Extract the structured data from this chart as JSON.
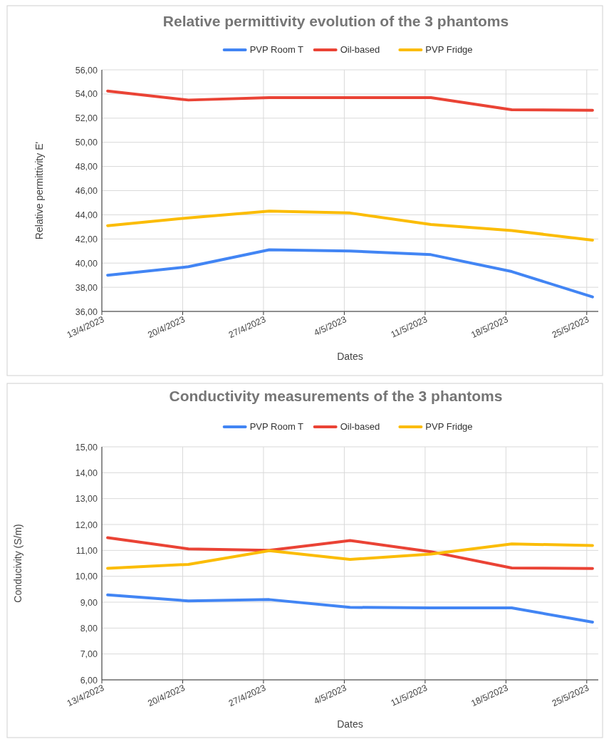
{
  "chart_data": [
    {
      "type": "line",
      "title": "Relative permittivity evolution of the 3 phantoms",
      "xlabel": "Dates",
      "ylabel": "Relative permittivity E'",
      "legend": "top",
      "grid": true,
      "marker": "none",
      "line_style": "solid",
      "x": [
        "2023-04-13T12:00",
        "2023-04-20T12:00",
        "2023-04-27T12:00",
        "2023-05-04T12:00",
        "2023-05-11T12:00",
        "2023-05-18T12:00",
        "2023-05-25T12:00"
      ],
      "xlim": [
        "2023-04-13",
        "2023-05-26"
      ],
      "xticks": [
        {
          "value": "2023-04-13",
          "label": "13/4/2023"
        },
        {
          "value": "2023-04-20",
          "label": "20/4/2023"
        },
        {
          "value": "2023-04-27",
          "label": "27/4/2023"
        },
        {
          "value": "2023-05-04",
          "label": "4/5/2023"
        },
        {
          "value": "2023-05-11",
          "label": "11/5/2023"
        },
        {
          "value": "2023-05-18",
          "label": "18/5/2023"
        },
        {
          "value": "2023-05-25",
          "label": "25/5/2023"
        }
      ],
      "ylim": [
        36,
        56
      ],
      "yticks": [
        {
          "value": 36,
          "label": "36,00"
        },
        {
          "value": 38,
          "label": "38,00"
        },
        {
          "value": 40,
          "label": "40,00"
        },
        {
          "value": 42,
          "label": "42,00"
        },
        {
          "value": 44,
          "label": "44,00"
        },
        {
          "value": 46,
          "label": "46,00"
        },
        {
          "value": 48,
          "label": "48,00"
        },
        {
          "value": 50,
          "label": "50,00"
        },
        {
          "value": 52,
          "label": "52,00"
        },
        {
          "value": 54,
          "label": "54,00"
        },
        {
          "value": 56,
          "label": "56,00"
        }
      ],
      "series": [
        {
          "name": "PVP Room T",
          "color": "#4285f4",
          "values": [
            39.0,
            39.7,
            41.1,
            41.0,
            40.7,
            39.3,
            37.2
          ]
        },
        {
          "name": "Oil-based",
          "color": "#ea4335",
          "values": [
            54.25,
            53.5,
            53.7,
            53.7,
            53.7,
            52.7,
            52.65
          ]
        },
        {
          "name": "PVP Fridge",
          "color": "#fbbc04",
          "values": [
            43.1,
            43.75,
            44.3,
            44.15,
            43.2,
            42.7,
            41.9
          ]
        }
      ]
    },
    {
      "type": "line",
      "title": "Conductivity measurements of the 3 phantoms",
      "xlabel": "Dates",
      "ylabel": "Conducivity (S/m)",
      "legend": "top",
      "grid": true,
      "marker": "none",
      "line_style": "solid",
      "x": [
        "2023-04-13T12:00",
        "2023-04-20T12:00",
        "2023-04-27T12:00",
        "2023-05-04T12:00",
        "2023-05-11T12:00",
        "2023-05-18T12:00",
        "2023-05-25T12:00"
      ],
      "xlim": [
        "2023-04-13",
        "2023-05-26"
      ],
      "xticks": [
        {
          "value": "2023-04-13",
          "label": "13/4/2023"
        },
        {
          "value": "2023-04-20",
          "label": "20/4/2023"
        },
        {
          "value": "2023-04-27",
          "label": "27/4/2023"
        },
        {
          "value": "2023-05-04",
          "label": "4/5/2023"
        },
        {
          "value": "2023-05-11",
          "label": "11/5/2023"
        },
        {
          "value": "2023-05-18",
          "label": "18/5/2023"
        },
        {
          "value": "2023-05-25",
          "label": "25/5/2023"
        }
      ],
      "ylim": [
        6,
        15
      ],
      "yticks": [
        {
          "value": 6,
          "label": "6,00"
        },
        {
          "value": 7,
          "label": "7,00"
        },
        {
          "value": 8,
          "label": "8,00"
        },
        {
          "value": 9,
          "label": "9,00"
        },
        {
          "value": 10,
          "label": "10,00"
        },
        {
          "value": 11,
          "label": "11,00"
        },
        {
          "value": 12,
          "label": "12,00"
        },
        {
          "value": 13,
          "label": "13,00"
        },
        {
          "value": 14,
          "label": "14,00"
        },
        {
          "value": 15,
          "label": "15,00"
        }
      ],
      "series": [
        {
          "name": "PVP Room T",
          "color": "#4285f4",
          "values": [
            9.28,
            9.05,
            9.1,
            8.8,
            8.78,
            8.78,
            8.23
          ]
        },
        {
          "name": "Oil-based",
          "color": "#ea4335",
          "values": [
            11.49,
            11.06,
            11.0,
            11.38,
            10.95,
            10.32,
            10.3
          ]
        },
        {
          "name": "PVP Fridge",
          "color": "#fbbc04",
          "values": [
            10.31,
            10.46,
            10.99,
            10.65,
            10.86,
            11.25,
            11.19
          ]
        }
      ]
    }
  ]
}
